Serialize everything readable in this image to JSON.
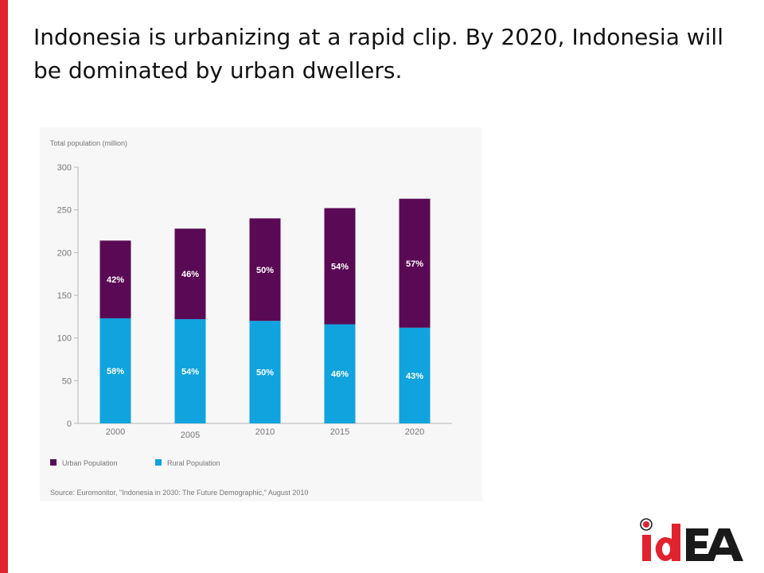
{
  "slide": {
    "title": "Indonesia is urbanizing at a rapid clip. By 2020, Indonesia will be dominated by urban dwellers."
  },
  "colors": {
    "accent_bar": "#e0232f",
    "urban": "#5a0a55",
    "rural": "#10a3de"
  },
  "logo": {
    "text": "idEA",
    "icon": "record-circle-icon"
  },
  "chart_data": {
    "type": "bar",
    "stacked": true,
    "ylabel": "Total population (million)",
    "ylim": [
      0,
      300
    ],
    "yticks": [
      0,
      50,
      100,
      150,
      200,
      250,
      300
    ],
    "categories": [
      "2000",
      "2005",
      "2010",
      "2015",
      "2020"
    ],
    "series": [
      {
        "name": "Rural Population",
        "color": "#10a3de",
        "values": [
          123,
          122,
          120,
          116,
          112
        ],
        "labels": [
          "58%",
          "54%",
          "50%",
          "46%",
          "43%"
        ]
      },
      {
        "name": "Urban Population",
        "color": "#5a0a55",
        "values": [
          91,
          106,
          120,
          136,
          151
        ],
        "labels": [
          "42%",
          "46%",
          "50%",
          "54%",
          "57%"
        ]
      }
    ],
    "legend": {
      "position": "bottom-left",
      "order": [
        "Urban Population",
        "Rural Population"
      ]
    },
    "source": "Source: Euromonitor, \"Indonesia in 2030: The Future Demographic,\" August 2010",
    "grid": false
  }
}
